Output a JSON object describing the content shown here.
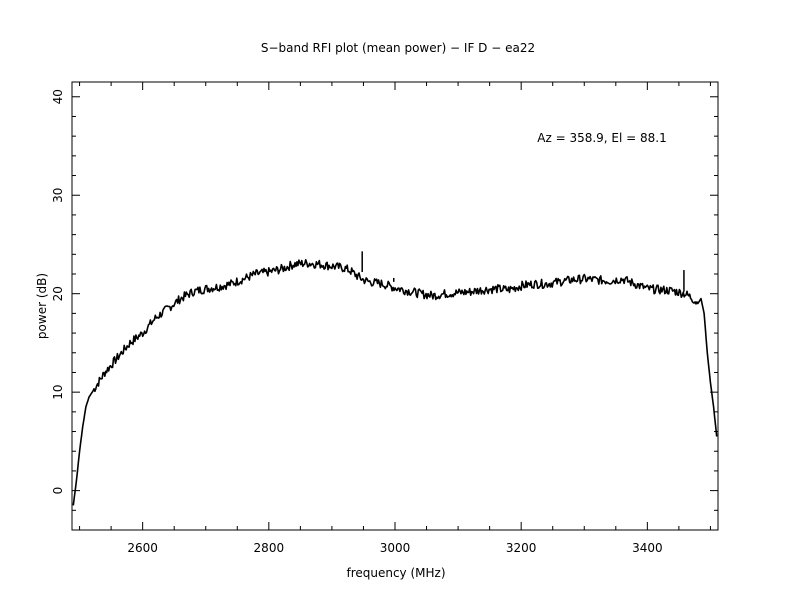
{
  "chart_data": {
    "type": "line",
    "title": "S−band RFI plot (mean power) − IF D − ea22",
    "xlabel": "frequency (MHz)",
    "ylabel": "power (dB)",
    "annotation": "Az = 358.9, El = 88.1",
    "xlim": [
      2488,
      3512
    ],
    "ylim": [
      -4,
      41.5
    ],
    "x_ticks": [
      2600,
      2800,
      3000,
      3200,
      3400
    ],
    "y_ticks": [
      0,
      10,
      20,
      30,
      40
    ],
    "grid": false,
    "line_color": "#000000",
    "series": [
      {
        "x": [
          2490,
          2495,
          2500,
          2505,
          2510,
          2515,
          2520,
          2530,
          2540,
          2560,
          2580,
          2600,
          2620,
          2640,
          2660,
          2680,
          2700,
          2720,
          2740,
          2760,
          2780,
          2800,
          2820,
          2840,
          2860,
          2880,
          2900,
          2920,
          2930,
          2940,
          2950,
          2960,
          2980,
          3000,
          3020,
          3040,
          3060,
          3080,
          3100,
          3120,
          3140,
          3160,
          3180,
          3200,
          3220,
          3240,
          3260,
          3280,
          3300,
          3320,
          3340,
          3360,
          3380,
          3400,
          3420,
          3440,
          3460,
          3470,
          3480,
          3485,
          3490,
          3495,
          3500,
          3505,
          3510
        ],
        "y": [
          -1.5,
          1,
          4,
          6.5,
          8.5,
          9.5,
          10,
          11,
          12,
          13.5,
          15,
          16,
          17.5,
          18.5,
          19.5,
          20.2,
          20.5,
          20.7,
          21,
          21.5,
          22,
          22.2,
          22.5,
          23,
          23.1,
          23,
          22.8,
          22.6,
          22.3,
          21.8,
          21.4,
          21.2,
          21,
          20.6,
          20.3,
          20,
          19.8,
          20,
          20.1,
          20.2,
          20.4,
          20.5,
          20.4,
          20.8,
          21,
          21,
          21.2,
          21.4,
          21.5,
          21.4,
          21.3,
          21.5,
          21,
          20.5,
          20.4,
          20.3,
          20,
          19.6,
          19,
          19.5,
          18,
          14,
          11,
          8.5,
          5.5
        ]
      }
    ],
    "spikes": [
      {
        "x": 2948,
        "base": 22.2,
        "top": 24.3
      },
      {
        "x": 2998,
        "base": 21.2,
        "top": 21.6
      },
      {
        "x": 3458,
        "base": 20.2,
        "top": 22.4
      }
    ]
  }
}
